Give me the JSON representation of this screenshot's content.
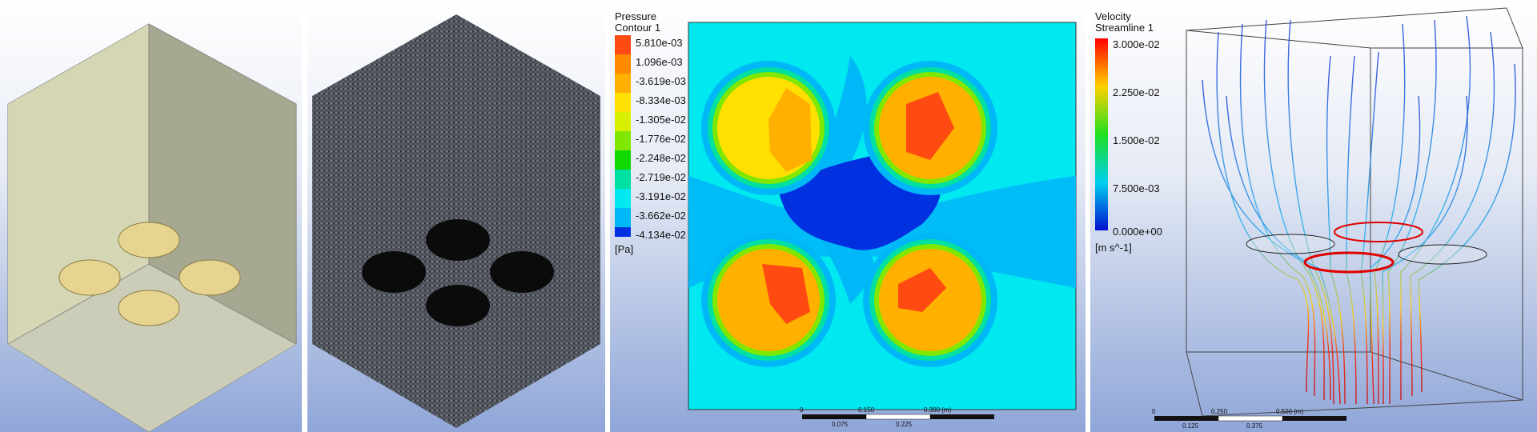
{
  "colors": {
    "background_top": "#ffffff",
    "background_bottom": "#8fa6d8",
    "pressure_scale": [
      "#ff4a12",
      "#ff8a00",
      "#ffb000",
      "#ffe000",
      "#d8f000",
      "#80e800",
      "#10d800",
      "#00e0a0",
      "#00e8f0",
      "#00b8f8",
      "#0078f0",
      "#0030e0"
    ],
    "velocity_low": "#0020e0",
    "velocity_high": "#ff0000"
  },
  "panel3": {
    "title_line1": "Pressure",
    "title_line2": "Contour 1",
    "levels": [
      "5.810e-03",
      "1.096e-03",
      "-3.619e-03",
      "-8.334e-03",
      "-1.305e-02",
      "-1.776e-02",
      "-2.248e-02",
      "-2.719e-02",
      "-3.191e-02",
      "-3.662e-02",
      "-4.134e-02"
    ],
    "unit": "[Pa]",
    "scale_top": [
      "0",
      "0.150",
      "0.300 (m)"
    ],
    "scale_bottom": [
      "0.075",
      "0.225"
    ]
  },
  "panel4": {
    "title_line1": "Velocity",
    "title_line2": "Streamline 1",
    "levels": [
      "3.000e-02",
      "2.250e-02",
      "1.500e-02",
      "7.500e-03",
      "0.000e+00"
    ],
    "unit": "[m s^-1]",
    "scale_top": [
      "0",
      "0.250",
      "0.500 (m)"
    ],
    "scale_bottom": [
      "0.125",
      "0.375"
    ]
  }
}
